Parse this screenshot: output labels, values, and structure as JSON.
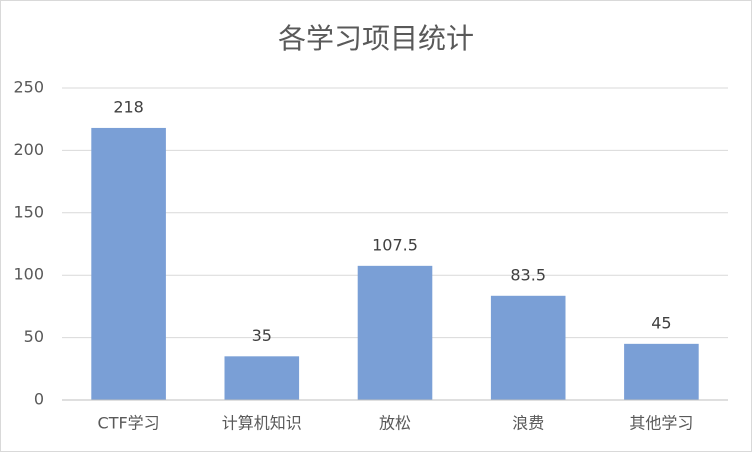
{
  "chart_data": {
    "type": "bar",
    "title": "各学习项目统计",
    "categories": [
      "CTF学习",
      "计算机知识",
      "放松",
      "浪费",
      "其他学习"
    ],
    "values": [
      218,
      35,
      107.5,
      83.5,
      45
    ],
    "color": "#7a9fd6",
    "ylim": [
      0,
      250
    ],
    "yticks": [
      0,
      50,
      100,
      150,
      200,
      250
    ],
    "grid": true,
    "data_labels": true
  }
}
